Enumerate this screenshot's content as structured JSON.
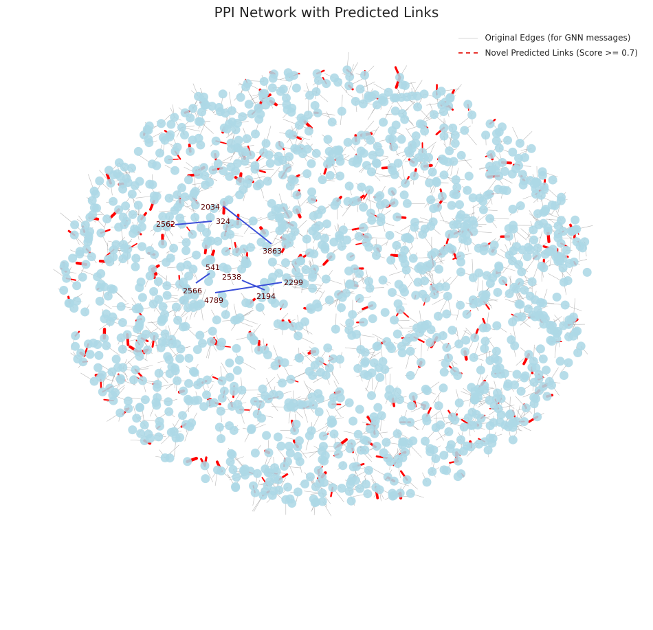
{
  "title": "PPI Network with Predicted Links",
  "legend": {
    "original_edges": "Original Edges (for GNN messages)",
    "novel_links": "Novel Predicted Links (Score >= 0.7)"
  },
  "colors": {
    "node": "#add8e6",
    "original_edge": "#808080",
    "predicted_link": "#ff0000",
    "highlight_link": "#3b4fd8",
    "label": "#5a0000"
  },
  "highlighted_links": [
    {
      "source": "2034",
      "target": "3863"
    },
    {
      "source": "2562",
      "target": "324"
    },
    {
      "source": "541",
      "target": "2566"
    },
    {
      "source": "2538",
      "target": "2194"
    },
    {
      "source": "4789",
      "target": "2299"
    }
  ]
}
